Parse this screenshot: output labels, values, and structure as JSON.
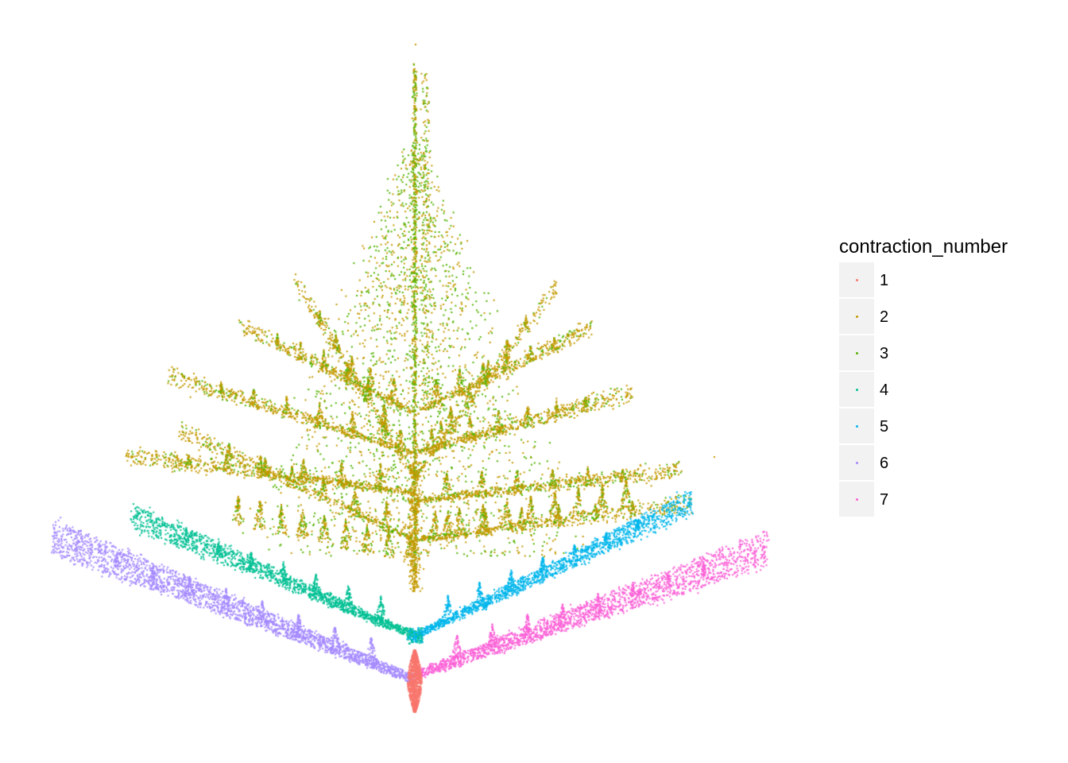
{
  "chart_data": {
    "type": "scatter",
    "title": "",
    "xlabel": "",
    "ylabel": "",
    "axes_visible": false,
    "grid": false,
    "legend_position": "right",
    "legend": {
      "title": "contraction_number",
      "entries": [
        {
          "label": "1",
          "color": "#F8766D"
        },
        {
          "label": "2",
          "color": "#C49A00"
        },
        {
          "label": "3",
          "color": "#53B400"
        },
        {
          "label": "4",
          "color": "#00C094"
        },
        {
          "label": "5",
          "color": "#00B6EB"
        },
        {
          "label": "6",
          "color": "#A58AFF"
        },
        {
          "label": "7",
          "color": "#FB61D7"
        }
      ]
    },
    "series": [
      {
        "name": "1",
        "color": "#F8766D",
        "description": "trunk segment at the base"
      },
      {
        "name": "2",
        "color": "#C49A00",
        "description": "upper canopy and fronds"
      },
      {
        "name": "3",
        "color": "#53B400",
        "description": "scattered among upper fronds"
      },
      {
        "name": "4",
        "color": "#00C094",
        "description": "left middle branch"
      },
      {
        "name": "5",
        "color": "#00B6EB",
        "description": "right middle branch"
      },
      {
        "name": "6",
        "color": "#A58AFF",
        "description": "left lower branch"
      },
      {
        "name": "7",
        "color": "#FB61D7",
        "description": "right lower branch"
      }
    ]
  }
}
